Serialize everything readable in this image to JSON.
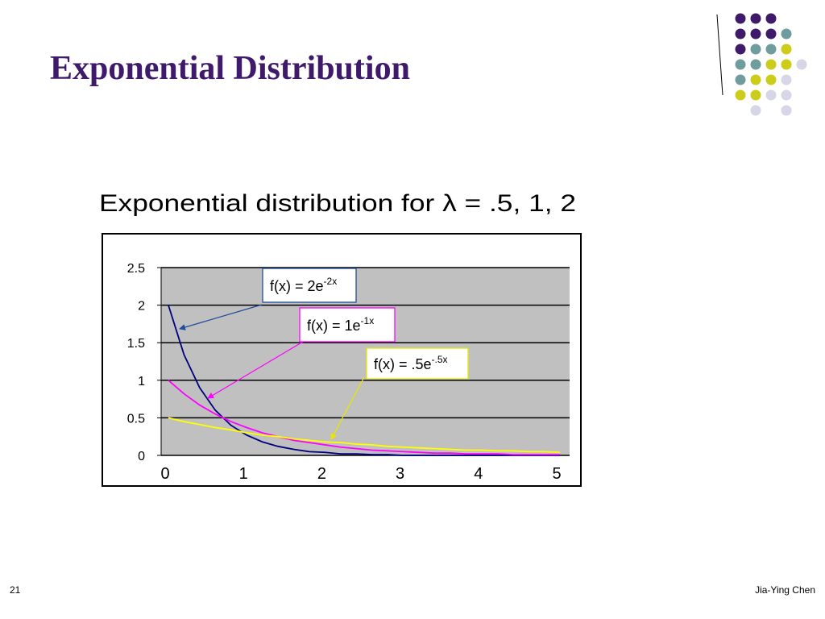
{
  "slide": {
    "title": "Exponential Distribution",
    "page": "21",
    "author": "Jia-Ying Chen"
  },
  "chart_data": {
    "type": "line",
    "title": "Exponential distribution for λ = .5, 1, 2",
    "x": [
      0,
      0.2,
      0.4,
      0.6,
      0.8,
      1,
      1.2,
      1.4,
      1.6,
      1.8,
      2,
      2.2,
      2.4,
      2.6,
      2.8,
      3,
      3.2,
      3.4,
      3.6,
      3.8,
      4,
      4.2,
      4.4,
      4.6,
      4.8,
      5
    ],
    "series": [
      {
        "color": "#000080",
        "values": [
          2,
          1.34,
          0.9,
          0.6,
          0.4,
          0.27,
          0.18,
          0.12,
          0.08,
          0.05,
          0.04,
          0.02,
          0.02,
          0.01,
          0.01,
          0,
          0,
          0,
          0,
          0,
          0,
          0,
          0,
          0,
          0,
          0
        ]
      },
      {
        "color": "#ff00ff",
        "values": [
          1,
          0.82,
          0.67,
          0.55,
          0.45,
          0.37,
          0.3,
          0.25,
          0.2,
          0.17,
          0.14,
          0.11,
          0.09,
          0.07,
          0.06,
          0.05,
          0.04,
          0.03,
          0.03,
          0.02,
          0.02,
          0.02,
          0.01,
          0.01,
          0.01,
          0.01
        ]
      },
      {
        "color": "#ffff00",
        "values": [
          0.5,
          0.45,
          0.41,
          0.37,
          0.34,
          0.3,
          0.27,
          0.25,
          0.22,
          0.2,
          0.18,
          0.17,
          0.15,
          0.14,
          0.12,
          0.11,
          0.1,
          0.09,
          0.08,
          0.07,
          0.07,
          0.06,
          0.06,
          0.05,
          0.05,
          0.04
        ]
      }
    ],
    "annotations": [
      {
        "text": "f(x) = 2e",
        "sup": "-2x",
        "color": "#1f4e9f"
      },
      {
        "text": "f(x) = 1e",
        "sup": "-1x",
        "color": "#ff00ff"
      },
      {
        "text": "f(x) = .5e",
        "sup": "-.5x",
        "color": "#e6e600"
      }
    ],
    "xlim": [
      0,
      5
    ],
    "xticks": [
      0,
      1,
      2,
      3,
      4,
      5
    ],
    "ylim": [
      0,
      2.5
    ],
    "yticks": [
      0,
      0.5,
      1,
      1.5,
      2,
      2.5
    ],
    "grid": true
  }
}
